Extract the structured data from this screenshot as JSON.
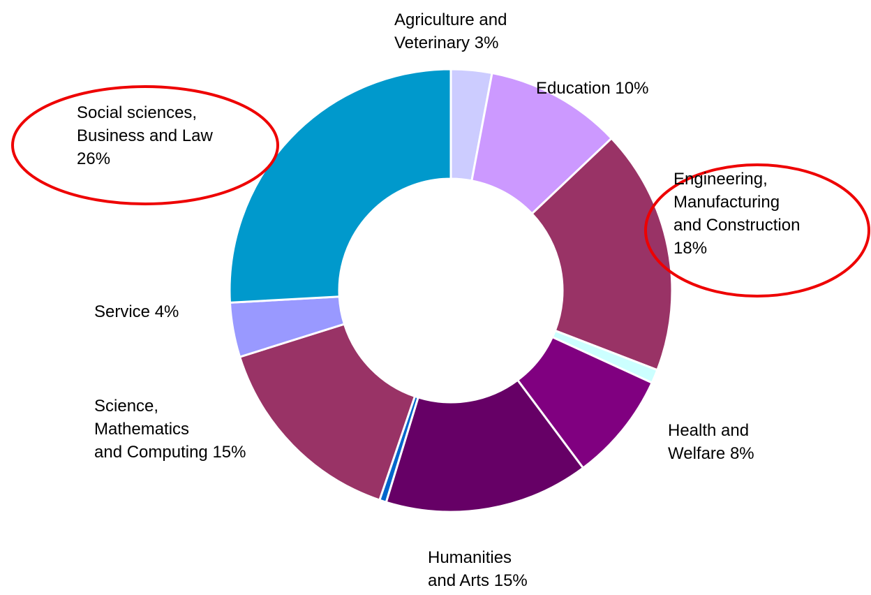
{
  "chart_data": {
    "type": "donut",
    "categories": [
      "Agriculture and\nVeterinary",
      "Education",
      "Engineering,\nManufacturing\nand Construction",
      null,
      "Health and\nWelfare",
      "Humanities\nand Arts",
      null,
      "Science,\nMathematics\nand Computing",
      "Service",
      "Social sciences,\nBusiness and Law"
    ],
    "values": [
      3,
      10,
      18,
      1,
      8,
      15,
      0.5,
      15,
      4,
      26
    ],
    "value_labels": [
      "3%",
      "10%",
      "18%",
      null,
      "8%",
      "15%",
      null,
      "15%",
      "4%",
      "26%"
    ],
    "colors": [
      "#ccccff",
      "#cc99ff",
      "#993366",
      "#ccffff",
      "#800080",
      "#660066",
      "#0066cc",
      "#993366",
      "#9999ff",
      "#0099cc"
    ]
  }
}
